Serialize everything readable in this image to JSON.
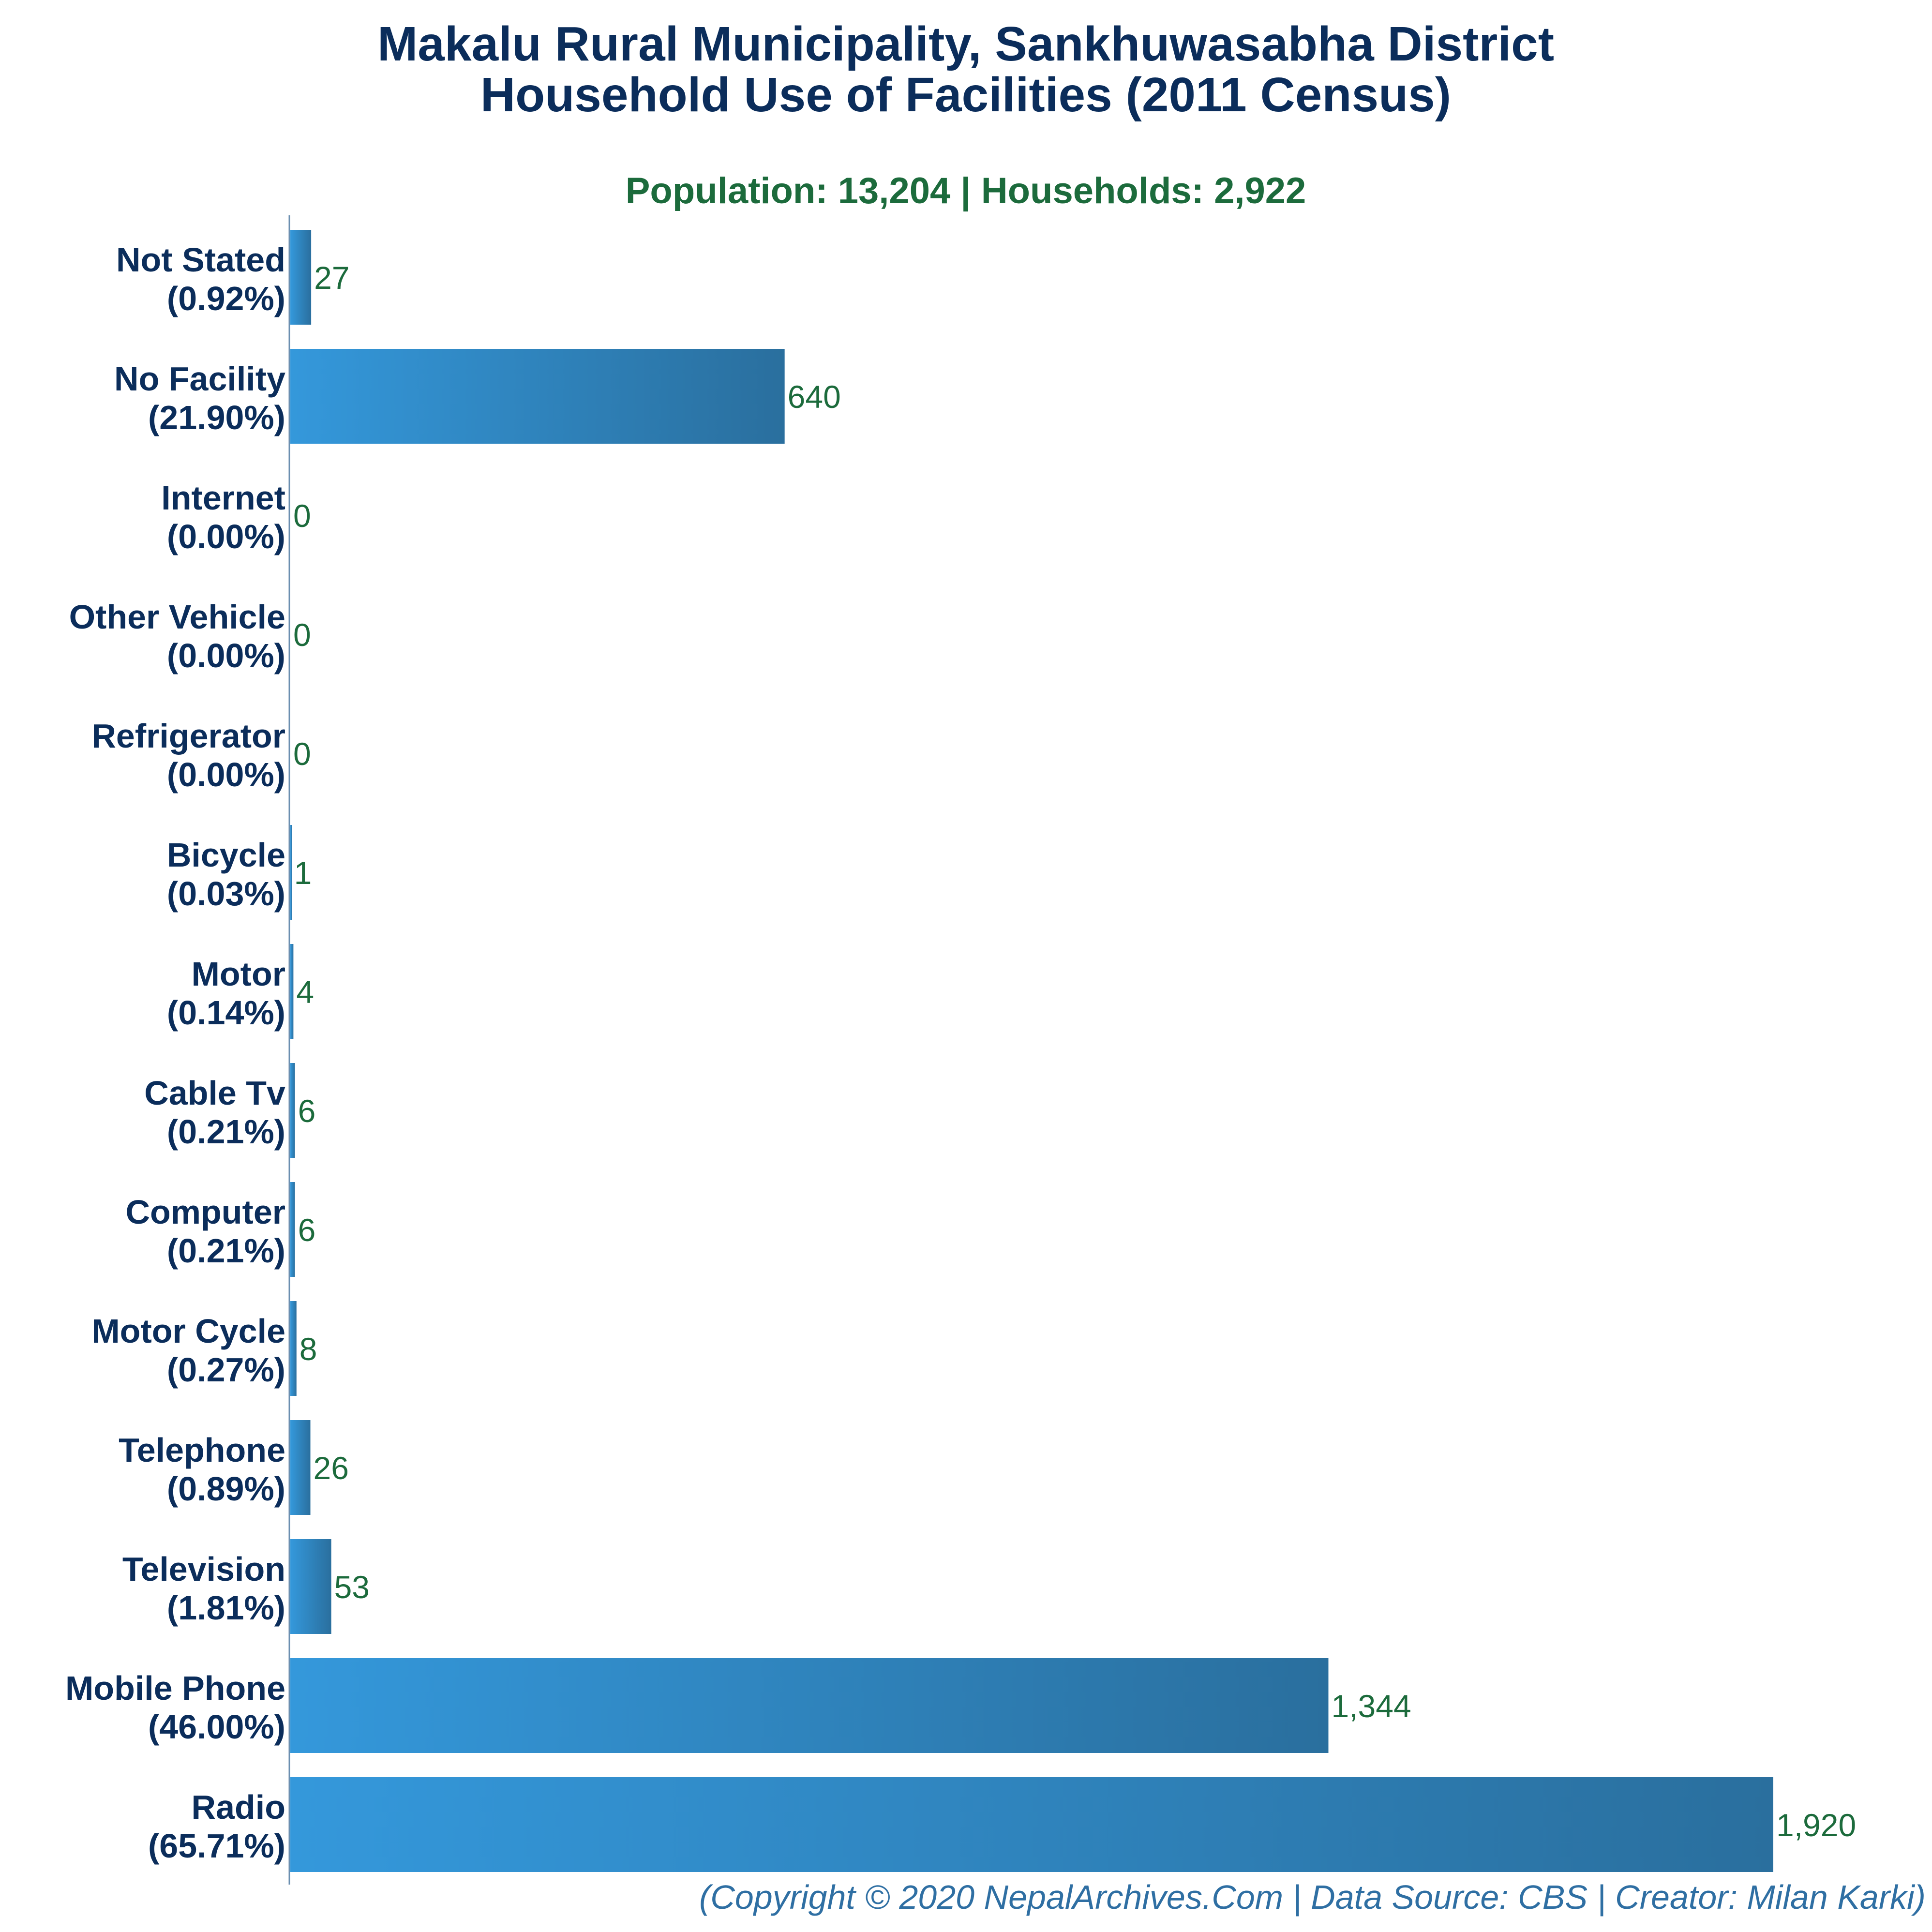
{
  "chart_data": {
    "type": "bar",
    "orientation": "horizontal",
    "title": "Makalu Rural Municipality, Sankhuwasabha District",
    "title_line2": "Household Use of Facilities (2011 Census)",
    "subtitle": "Population: 13,204 | Households: 2,922",
    "categories": [
      "Not Stated",
      "No Facility",
      "Internet",
      "Other Vehicle",
      "Refrigerator",
      "Bicycle",
      "Motor",
      "Cable Tv",
      "Computer",
      "Motor Cycle",
      "Telephone",
      "Television",
      "Mobile Phone",
      "Radio"
    ],
    "percent_labels": [
      "(0.92%)",
      "(21.90%)",
      "(0.00%)",
      "(0.00%)",
      "(0.00%)",
      "(0.03%)",
      "(0.14%)",
      "(0.21%)",
      "(0.21%)",
      "(0.27%)",
      "(0.89%)",
      "(1.81%)",
      "(46.00%)",
      "(65.71%)"
    ],
    "values": [
      27,
      640,
      0,
      0,
      0,
      1,
      4,
      6,
      6,
      8,
      26,
      53,
      1344,
      1920
    ],
    "value_labels": [
      "27",
      "640",
      "0",
      "0",
      "0",
      "1",
      "4",
      "6",
      "6",
      "8",
      "26",
      "53",
      "1,344",
      "1,920"
    ],
    "xlim": [
      0,
      1920
    ],
    "xlabel": "",
    "ylabel": "",
    "grid": false,
    "colors": {
      "bar_light": "#3498db",
      "bar_dark": "#2a6f9e",
      "title": "#0b2d5b",
      "subtitle": "#1c6b3c",
      "credit": "#2f6fa3"
    }
  },
  "footer": {
    "credit": "(Copyright © 2020 NepalArchives.Com | Data Source: CBS | Creator: Milan Karki)"
  }
}
